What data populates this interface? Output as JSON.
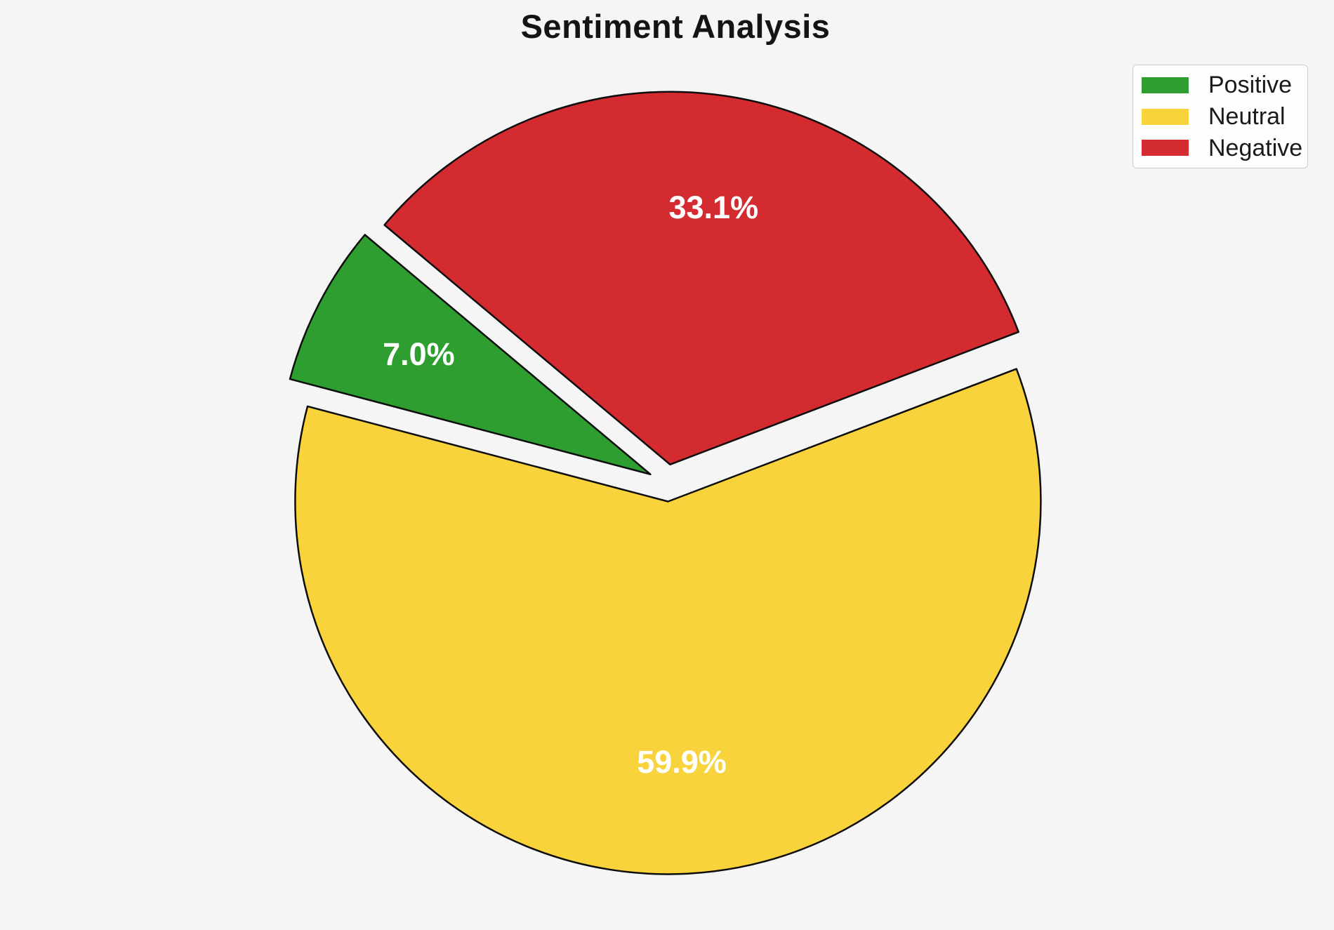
{
  "title": "Sentiment Analysis",
  "background_color": "#f5f5f6",
  "chart_data": {
    "type": "pie",
    "title": "Sentiment Analysis",
    "categories": [
      "Positive",
      "Neutral",
      "Negative"
    ],
    "values": [
      7.0,
      59.9,
      33.1
    ],
    "percent_labels": [
      "7.0%",
      "59.9%",
      "33.1%"
    ],
    "colors": [
      "#2e9e30",
      "#f9d33b",
      "#d32b2f"
    ],
    "start_angle_deg": 140,
    "direction": "counterclockwise",
    "explode": 0.05,
    "percent_label_distance": 0.7,
    "percent_label_color": "#ffffff",
    "edge_color": "#0d0d0d",
    "legend": {
      "position": "upper right",
      "entries": [
        "Positive",
        "Neutral",
        "Negative"
      ]
    }
  }
}
